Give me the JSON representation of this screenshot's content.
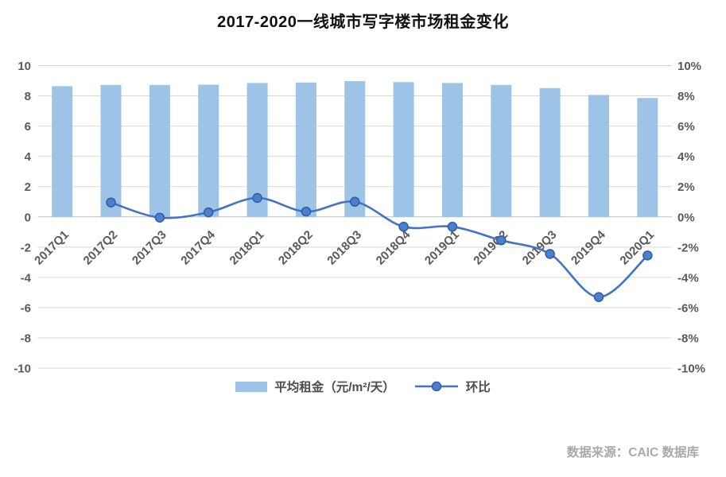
{
  "page": {
    "title": "2017-2020一线城市写字楼市场租金变化",
    "source_note": "数据来源：CAIC 数据库"
  },
  "legend": {
    "bar_label": "平均租金（元/m²/天）",
    "line_label": "环比"
  },
  "colors": {
    "bar_fill": "#9DC3E6",
    "line_stroke": "#4472C4",
    "marker_fill": "#4C80CB",
    "marker_stroke": "#2F5CA8",
    "gridline": "#d9d9d9",
    "zero_line": "#bfbfbf",
    "axis_text": "#595959"
  },
  "chart_data": {
    "type": "bar+line",
    "title": "2017-2020一线城市写字楼市场租金变化",
    "categories": [
      "2017Q1",
      "2017Q2",
      "2017Q3",
      "2017Q4",
      "2018Q1",
      "2018Q2",
      "2018Q3",
      "2018Q4",
      "2019Q1",
      "2019Q2",
      "2019Q3",
      "2019Q4",
      "2020Q1"
    ],
    "series": [
      {
        "name": "平均租金（元/m²/天）",
        "type": "bar",
        "axis": "left",
        "unit": "元/m²/天",
        "values": [
          8.64,
          8.72,
          8.72,
          8.74,
          8.85,
          8.88,
          8.97,
          8.91,
          8.85,
          8.72,
          8.51,
          8.06,
          7.86
        ]
      },
      {
        "name": "环比",
        "type": "line",
        "axis": "right",
        "unit": "%",
        "values": [
          null,
          0.95,
          -0.05,
          0.3,
          1.25,
          0.35,
          1.0,
          -0.65,
          -0.65,
          -1.55,
          -2.45,
          -5.3,
          -2.55
        ]
      }
    ],
    "left_axis": {
      "min": -10,
      "max": 10,
      "step": 2,
      "tick_labels": [
        "10",
        "8",
        "6",
        "4",
        "2",
        "0",
        "-2",
        "-4",
        "-6",
        "-8",
        "-10"
      ]
    },
    "right_axis": {
      "min": -10,
      "max": 10,
      "step": 2,
      "tick_labels": [
        "10%",
        "8%",
        "6%",
        "4%",
        "2%",
        "0%",
        "-2%",
        "-4%",
        "-6%",
        "-8%",
        "-10%"
      ]
    },
    "grid": true,
    "legend_position": "bottom",
    "smooth_line": true
  }
}
